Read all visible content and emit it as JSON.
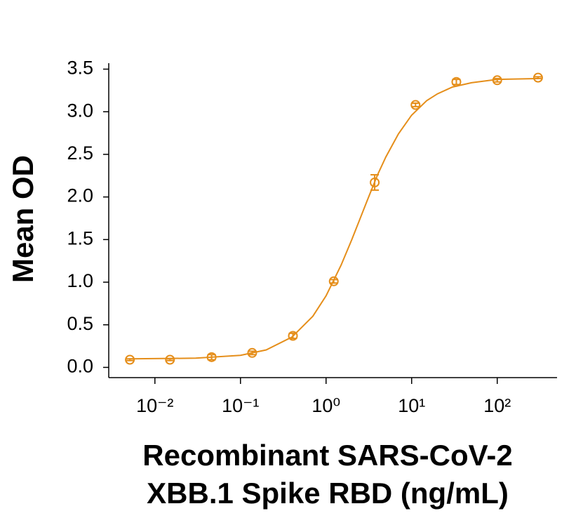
{
  "chart_data": {
    "type": "scatter",
    "ylabel": "Mean OD",
    "xlabel": [
      "Recombinant SARS-CoV-2",
      "XBB.1 Spike RBD (ng/mL)"
    ],
    "xscale": "log",
    "xlim": [
      0.003,
      500
    ],
    "ylim": [
      -0.12,
      3.57
    ],
    "xticks": [
      {
        "value": 0.01,
        "label": "10⁻²"
      },
      {
        "value": 0.1,
        "label": "10⁻¹"
      },
      {
        "value": 1,
        "label": "10⁰"
      },
      {
        "value": 10,
        "label": "10¹"
      },
      {
        "value": 100,
        "label": "10²"
      }
    ],
    "yticks": [
      {
        "value": 0,
        "label": "0.0"
      },
      0.5,
      {
        "value": 1,
        "label": "1.0"
      },
      1.5,
      {
        "value": 2,
        "label": "2.0"
      },
      2.5,
      {
        "value": 3,
        "label": "3.0"
      },
      3.5
    ],
    "color": "#e58e1a",
    "points": {
      "x": [
        0.0051,
        0.015,
        0.046,
        0.137,
        0.41,
        1.23,
        3.7,
        11.1,
        33.3,
        100,
        300
      ],
      "values": [
        0.09,
        0.09,
        0.12,
        0.17,
        0.37,
        1.01,
        2.17,
        3.08,
        3.35,
        3.37,
        3.4
      ],
      "errors": [
        0.01,
        0.01,
        0.03,
        0.02,
        0.03,
        0.02,
        0.09,
        0.02,
        0.03,
        0.02,
        0.01
      ]
    },
    "fit": {
      "x": [
        0.005,
        0.03,
        0.1,
        0.2,
        0.4,
        0.7,
        1,
        1.5,
        2,
        3,
        4,
        5,
        7,
        10,
        15,
        20,
        30,
        50,
        100,
        300
      ],
      "values": [
        0.1,
        0.108,
        0.142,
        0.205,
        0.356,
        0.6,
        0.84,
        1.2,
        1.5,
        1.95,
        2.26,
        2.47,
        2.74,
        2.96,
        3.13,
        3.21,
        3.29,
        3.34,
        3.38,
        3.39
      ]
    }
  }
}
